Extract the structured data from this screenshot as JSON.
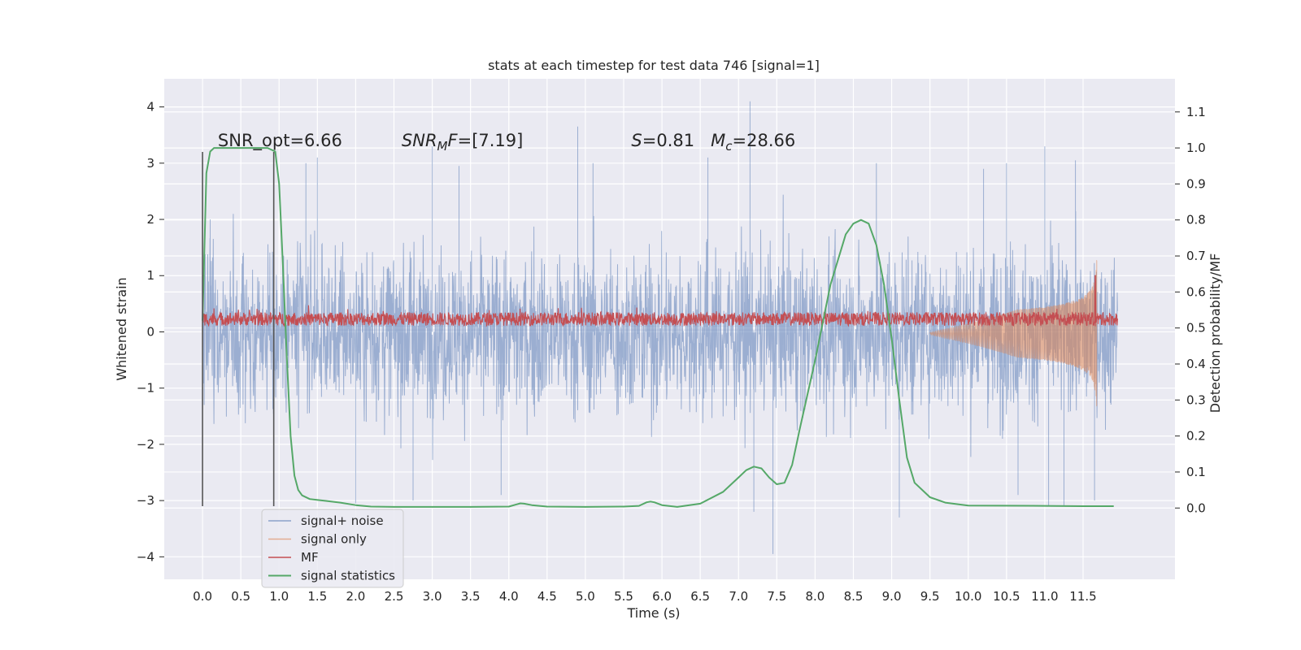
{
  "chart_data": {
    "type": "line",
    "title": "stats at each timestep for test data 746 [signal=1]",
    "xlabel": "Time (s)",
    "ylabel": "Whitened strain",
    "y2label": "Detection probability/MF",
    "xlim": [
      -0.5,
      12.7
    ],
    "ylim": [
      -4.4,
      4.5
    ],
    "y2lim": [
      -0.198,
      1.192
    ],
    "x_ticks": [
      0.0,
      0.5,
      1.0,
      1.5,
      2.0,
      2.5,
      3.0,
      3.5,
      4.0,
      4.5,
      5.0,
      5.5,
      6.0,
      6.5,
      7.0,
      7.5,
      8.0,
      8.5,
      9.0,
      9.5,
      10.0,
      10.5,
      11.0,
      11.5
    ],
    "x_tick_labels": [
      "0.0",
      "0.5",
      "1.0",
      "1.5",
      "2.0",
      "2.5",
      "3.0",
      "3.5",
      "4.0",
      "4.5",
      "5.0",
      "5.5",
      "6.0",
      "6.5",
      "7.0",
      "7.5",
      "8.0",
      "8.5",
      "9.0",
      "9.5",
      "10.0",
      "10.5",
      "11.0",
      "11.5"
    ],
    "y_ticks": [
      -4,
      -3,
      -2,
      -1,
      0,
      1,
      2,
      3,
      4
    ],
    "y_tick_labels": [
      "−4",
      "−3",
      "−2",
      "−1",
      "0",
      "1",
      "2",
      "3",
      "4"
    ],
    "y2_ticks": [
      0.0,
      0.1,
      0.2,
      0.3,
      0.4,
      0.5,
      0.6,
      0.7,
      0.8,
      0.9,
      1.0,
      1.1
    ],
    "y2_tick_labels": [
      "0.0",
      "0.1",
      "0.2",
      "0.3",
      "0.4",
      "0.5",
      "0.6",
      "0.7",
      "0.8",
      "0.9",
      "1.0",
      "1.1"
    ],
    "grid": true,
    "legend_position": "lower-left",
    "vertical_lines": {
      "x": [
        0.0,
        0.93
      ],
      "y_range": [
        -3.1,
        3.2
      ]
    },
    "annotations": [
      {
        "id": "snr_opt",
        "text": "SNR_opt=6.66",
        "x": 0.2,
        "y": 3.3
      },
      {
        "id": "snr_mf",
        "text": "SNR_MF=[7.19]",
        "x": 2.6,
        "y": 3.3
      },
      {
        "id": "s_mc",
        "text": "S=0.81   M_c=28.66",
        "x": 5.6,
        "y": 3.3
      }
    ],
    "series": [
      {
        "name": "signal+ noise",
        "color": "#4c72b0",
        "axis": "left",
        "style": "noise",
        "x_range": [
          0.0,
          11.95
        ],
        "typical_envelope": [
          -1.3,
          1.3
        ],
        "peaks": [
          {
            "x": 0.1,
            "y": 2.0
          },
          {
            "x": 1.35,
            "y": 3.0
          },
          {
            "x": 1.5,
            "y": 3.1
          },
          {
            "x": 2.0,
            "y": -3.05
          },
          {
            "x": 2.75,
            "y": -3.0
          },
          {
            "x": 3.0,
            "y": 3.3
          },
          {
            "x": 3.35,
            "y": 2.95
          },
          {
            "x": 3.9,
            "y": -2.9
          },
          {
            "x": 4.9,
            "y": 3.65
          },
          {
            "x": 5.1,
            "y": 3.0
          },
          {
            "x": 6.6,
            "y": 3.1
          },
          {
            "x": 7.15,
            "y": 4.1
          },
          {
            "x": 7.45,
            "y": -3.95
          },
          {
            "x": 7.2,
            "y": -3.2
          },
          {
            "x": 8.8,
            "y": 3.0
          },
          {
            "x": 9.1,
            "y": -3.3
          },
          {
            "x": 10.2,
            "y": 2.9
          },
          {
            "x": 10.5,
            "y": 3.0
          },
          {
            "x": 10.65,
            "y": -2.9
          },
          {
            "x": 11.0,
            "y": 3.3
          },
          {
            "x": 11.05,
            "y": -3.1
          },
          {
            "x": 11.25,
            "y": -3.1
          },
          {
            "x": 11.4,
            "y": 3.05
          },
          {
            "x": 11.65,
            "y": -3.0
          }
        ]
      },
      {
        "name": "signal only",
        "color": "#dd8452",
        "axis": "left",
        "style": "chirp",
        "x_range": [
          9.5,
          11.68
        ],
        "merger_time": 11.68,
        "peak_amplitude": 1.45
      },
      {
        "name": "MF",
        "color": "#c44e52",
        "axis": "left",
        "style": "band",
        "x_range": [
          0.0,
          11.95
        ],
        "band": [
          0.05,
          0.35
        ],
        "spike": {
          "x": 11.66,
          "y": 1.0
        }
      },
      {
        "name": "signal statistics",
        "color": "#55a868",
        "axis": "right",
        "x": [
          0.0,
          0.05,
          0.1,
          0.15,
          0.2,
          0.3,
          0.5,
          0.7,
          0.85,
          0.95,
          1.0,
          1.05,
          1.1,
          1.15,
          1.2,
          1.25,
          1.3,
          1.4,
          1.6,
          1.8,
          2.0,
          2.2,
          2.5,
          3.0,
          3.5,
          4.0,
          4.1,
          4.15,
          4.2,
          4.3,
          4.5,
          5.0,
          5.5,
          5.7,
          5.8,
          5.85,
          5.9,
          6.0,
          6.2,
          6.5,
          6.8,
          7.0,
          7.1,
          7.2,
          7.3,
          7.4,
          7.5,
          7.6,
          7.7,
          7.8,
          8.0,
          8.2,
          8.4,
          8.5,
          8.6,
          8.7,
          8.8,
          8.9,
          9.0,
          9.1,
          9.2,
          9.3,
          9.4,
          9.5,
          9.7,
          10.0,
          11.0,
          11.5,
          11.9
        ],
        "y": [
          0.52,
          0.93,
          0.99,
          1.0,
          1.0,
          1.0,
          1.0,
          1.0,
          1.0,
          0.99,
          0.9,
          0.67,
          0.42,
          0.2,
          0.09,
          0.05,
          0.035,
          0.025,
          0.02,
          0.015,
          0.008,
          0.004,
          0.003,
          0.003,
          0.003,
          0.004,
          0.01,
          0.013,
          0.012,
          0.008,
          0.004,
          0.003,
          0.004,
          0.006,
          0.016,
          0.018,
          0.016,
          0.008,
          0.003,
          0.012,
          0.045,
          0.085,
          0.105,
          0.115,
          0.11,
          0.085,
          0.066,
          0.07,
          0.12,
          0.22,
          0.41,
          0.62,
          0.76,
          0.79,
          0.8,
          0.79,
          0.73,
          0.62,
          0.47,
          0.3,
          0.14,
          0.07,
          0.05,
          0.03,
          0.015,
          0.007,
          0.006,
          0.005,
          0.005
        ]
      }
    ]
  }
}
